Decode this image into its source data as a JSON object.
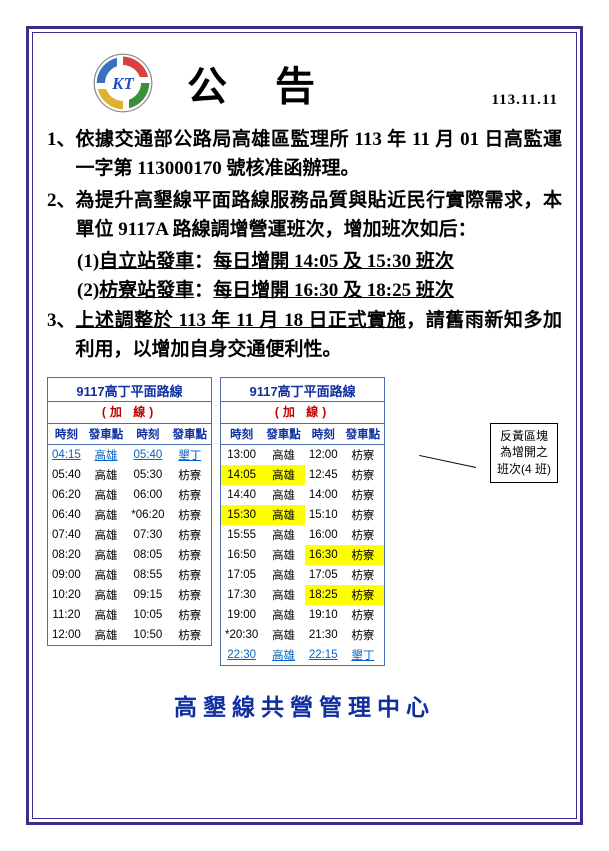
{
  "header": {
    "title": "公告",
    "date": "113.11.11",
    "logo_text": "KT",
    "logo_colors": {
      "ring_bg": "#ffffff",
      "arrow1": "#d94040",
      "arrow2": "#3a8f3a",
      "arrow3": "#e0b030",
      "arrow4": "#3a70c0",
      "kt": "#2050c0"
    }
  },
  "paragraphs": {
    "p1_num": "1、",
    "p1_text": "依據交通部公路局高雄區監理所 113 年 11 月 01 日高監運一字第 113000170 號核准函辦理。",
    "p2_num": "2、",
    "p2_text": "為提升高墾線平面路線服務品質與貼近民行實際需求，本單位 9117A 路線調增營運班次，增加班次如后：",
    "p2_sub1_num": "(1)",
    "p2_sub1_u1": "自立站發車",
    "p2_sub1_mid": "：",
    "p2_sub1_u2": "每日增開 14:05 及 15:30 班次",
    "p2_sub2_num": "(2)",
    "p2_sub2_u1": "枋寮站發車",
    "p2_sub2_mid": "：",
    "p2_sub2_u2": "每日增開 16:30 及 18:25 班次",
    "p3_num": "3、",
    "p3_u": "上述調整於 113 年 11 月 18 日正式實施",
    "p3_tail": "，請舊雨新知多加利用，以增加自身交通便利性。"
  },
  "tables": {
    "caption": "9117高丁平面路線",
    "caption_sub": "(加 線)",
    "headers": {
      "time": "時刻",
      "dep": "發車點"
    },
    "left": [
      {
        "t1": "04:15",
        "d1": "高雄",
        "t2": "05:40",
        "d2": "墾丁",
        "link1": true,
        "link2": true
      },
      {
        "t1": "05:40",
        "d1": "高雄",
        "t2": "05:30",
        "d2": "枋寮"
      },
      {
        "t1": "06:20",
        "d1": "高雄",
        "t2": "06:00",
        "d2": "枋寮"
      },
      {
        "t1": "06:40",
        "d1": "高雄",
        "t2": "*06:20",
        "d2": "枋寮"
      },
      {
        "t1": "07:40",
        "d1": "高雄",
        "t2": "07:30",
        "d2": "枋寮"
      },
      {
        "t1": "08:20",
        "d1": "高雄",
        "t2": "08:05",
        "d2": "枋寮"
      },
      {
        "t1": "09:00",
        "d1": "高雄",
        "t2": "08:55",
        "d2": "枋寮"
      },
      {
        "t1": "10:20",
        "d1": "高雄",
        "t2": "09:15",
        "d2": "枋寮"
      },
      {
        "t1": "11:20",
        "d1": "高雄",
        "t2": "10:05",
        "d2": "枋寮"
      },
      {
        "t1": "12:00",
        "d1": "高雄",
        "t2": "10:50",
        "d2": "枋寮"
      }
    ],
    "right": [
      {
        "t1": "13:00",
        "d1": "高雄",
        "t2": "12:00",
        "d2": "枋寮"
      },
      {
        "t1": "14:05",
        "d1": "高雄",
        "t2": "12:45",
        "d2": "枋寮",
        "hl1": true
      },
      {
        "t1": "14:40",
        "d1": "高雄",
        "t2": "14:00",
        "d2": "枋寮"
      },
      {
        "t1": "15:30",
        "d1": "高雄",
        "t2": "15:10",
        "d2": "枋寮",
        "hl1": true
      },
      {
        "t1": "15:55",
        "d1": "高雄",
        "t2": "16:00",
        "d2": "枋寮"
      },
      {
        "t1": "16:50",
        "d1": "高雄",
        "t2": "16:30",
        "d2": "枋寮",
        "hl2": true
      },
      {
        "t1": "17:05",
        "d1": "高雄",
        "t2": "17:05",
        "d2": "枋寮"
      },
      {
        "t1": "17:30",
        "d1": "高雄",
        "t2": "18:25",
        "d2": "枋寮",
        "hl2": true
      },
      {
        "t1": "19:00",
        "d1": "高雄",
        "t2": "19:10",
        "d2": "枋寮"
      },
      {
        "t1": "*20:30",
        "d1": "高雄",
        "t2": "21:30",
        "d2": "枋寮"
      },
      {
        "t1": "22:30",
        "d1": "高雄",
        "t2": "22:15",
        "d2": "墾丁",
        "link1": true,
        "link2": true
      }
    ]
  },
  "note": {
    "l1": "反黃區塊",
    "l2": "為增開之",
    "l3": "班次(4 班)"
  },
  "footer": "高墾線共營管理中心",
  "colors": {
    "border": "#3a2b8c",
    "heading_blue": "#1030a0",
    "link": "#0563c1",
    "highlight": "#ffff00",
    "red": "#c00000"
  }
}
